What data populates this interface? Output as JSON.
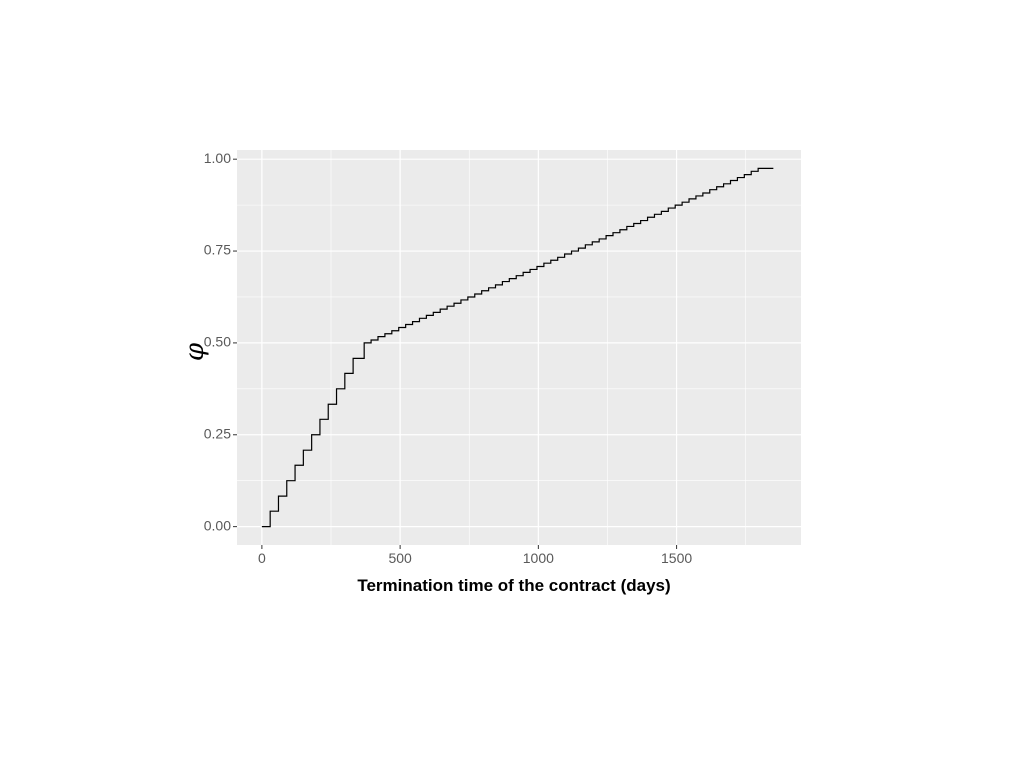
{
  "chart_data": {
    "type": "line",
    "step": true,
    "title": "",
    "xlabel": "Termination time of the contract (days)",
    "ylabel": "φ",
    "xlim": [
      -90,
      1950
    ],
    "ylim": [
      -0.05,
      1.025
    ],
    "x_ticks": [
      0,
      500,
      1000,
      1500
    ],
    "x_tick_labels": [
      "0",
      "500",
      "1000",
      "1500"
    ],
    "y_ticks": [
      0,
      0.25,
      0.5,
      0.75,
      1.0
    ],
    "y_tick_labels": [
      "0.00",
      "0.25",
      "0.50",
      "0.75",
      "1.00"
    ],
    "grid": true,
    "legend": "none",
    "series": [
      {
        "x": [
          0,
          30,
          60,
          90,
          120,
          150,
          180,
          210,
          240,
          270,
          300,
          330,
          370,
          395,
          420,
          445,
          470,
          495,
          520,
          545,
          570,
          595,
          620,
          645,
          670,
          695,
          720,
          745,
          770,
          795,
          820,
          845,
          870,
          895,
          920,
          945,
          970,
          995,
          1020,
          1045,
          1070,
          1095,
          1120,
          1145,
          1170,
          1195,
          1220,
          1245,
          1270,
          1295,
          1320,
          1345,
          1370,
          1395,
          1420,
          1445,
          1470,
          1495,
          1520,
          1545,
          1570,
          1595,
          1620,
          1645,
          1670,
          1695,
          1720,
          1745,
          1770,
          1795,
          1850
        ],
        "y": [
          0.0,
          0.042,
          0.083,
          0.125,
          0.167,
          0.208,
          0.25,
          0.292,
          0.333,
          0.375,
          0.417,
          0.458,
          0.5,
          0.508,
          0.517,
          0.525,
          0.533,
          0.542,
          0.55,
          0.558,
          0.567,
          0.575,
          0.583,
          0.592,
          0.6,
          0.608,
          0.617,
          0.625,
          0.633,
          0.642,
          0.65,
          0.658,
          0.667,
          0.675,
          0.683,
          0.692,
          0.7,
          0.708,
          0.717,
          0.725,
          0.733,
          0.742,
          0.75,
          0.758,
          0.767,
          0.775,
          0.783,
          0.792,
          0.8,
          0.808,
          0.817,
          0.825,
          0.833,
          0.842,
          0.85,
          0.858,
          0.867,
          0.875,
          0.883,
          0.892,
          0.9,
          0.908,
          0.917,
          0.925,
          0.933,
          0.942,
          0.95,
          0.958,
          0.967,
          0.975,
          0.975
        ],
        "color": "#000000"
      }
    ],
    "panel_background": "#ebebeb",
    "grid_color": "#ffffff"
  }
}
